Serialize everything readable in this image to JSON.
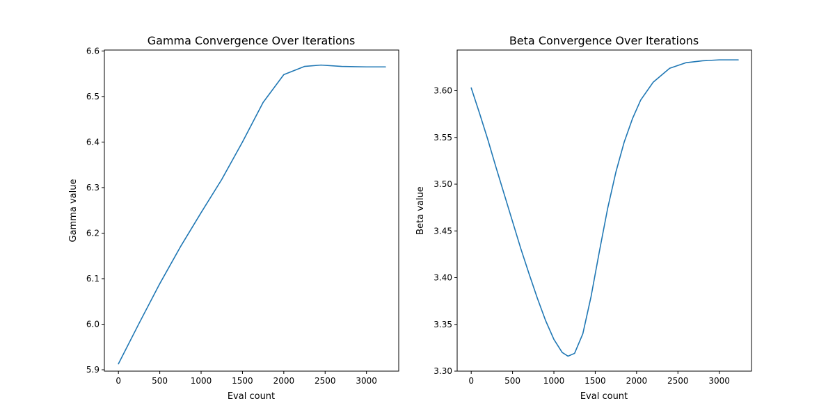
{
  "chart_data": [
    {
      "type": "line",
      "title": "Gamma Convergence Over Iterations",
      "xlabel": "Eval count",
      "ylabel": "Gamma value",
      "xlim": [
        -170,
        3390
      ],
      "ylim": [
        5.897,
        6.602
      ],
      "xticks": [
        0,
        500,
        1000,
        1500,
        2000,
        2500,
        3000
      ],
      "yticks": [
        5.9,
        6.0,
        6.1,
        6.2,
        6.3,
        6.4,
        6.5,
        6.6
      ],
      "x_tick_labels": [
        "0",
        "500",
        "1000",
        "1500",
        "2000",
        "2500",
        "3000"
      ],
      "y_tick_labels": [
        "5.9",
        "6.0",
        "6.1",
        "6.2",
        "6.3",
        "6.4",
        "6.5",
        "6.6"
      ],
      "color": "#1f77b4",
      "grid": false,
      "series": [
        {
          "x": [
            0,
            250,
            500,
            750,
            1000,
            1250,
            1500,
            1750,
            2000,
            2250,
            2450,
            2700,
            3000,
            3230
          ],
          "values": [
            5.913,
            6.002,
            6.089,
            6.17,
            6.245,
            6.318,
            6.4,
            6.487,
            6.548,
            6.566,
            6.569,
            6.566,
            6.565,
            6.565
          ]
        }
      ]
    },
    {
      "type": "line",
      "title": "Beta Convergence Over Iterations",
      "xlabel": "Eval count",
      "ylabel": "Beta value",
      "xlim": [
        -170,
        3390
      ],
      "ylim": [
        3.3,
        3.6435
      ],
      "xticks": [
        0,
        500,
        1000,
        1500,
        2000,
        2500,
        3000
      ],
      "yticks": [
        3.3,
        3.35,
        3.4,
        3.45,
        3.5,
        3.55,
        3.6
      ],
      "x_tick_labels": [
        "0",
        "500",
        "1000",
        "1500",
        "2000",
        "2500",
        "3000"
      ],
      "y_tick_labels": [
        "3.30",
        "3.35",
        "3.40",
        "3.45",
        "3.50",
        "3.55",
        "3.60"
      ],
      "color": "#1f77b4",
      "grid": false,
      "series": [
        {
          "x": [
            0,
            100,
            200,
            300,
            400,
            500,
            600,
            700,
            800,
            900,
            1000,
            1100,
            1170,
            1250,
            1350,
            1450,
            1550,
            1650,
            1750,
            1850,
            1950,
            2050,
            2200,
            2400,
            2600,
            2800,
            3000,
            3230
          ],
          "values": [
            3.603,
            3.576,
            3.548,
            3.518,
            3.489,
            3.46,
            3.431,
            3.404,
            3.378,
            3.354,
            3.334,
            3.32,
            3.316,
            3.319,
            3.34,
            3.38,
            3.428,
            3.474,
            3.513,
            3.545,
            3.57,
            3.59,
            3.609,
            3.624,
            3.63,
            3.632,
            3.633,
            3.633
          ]
        }
      ]
    }
  ]
}
